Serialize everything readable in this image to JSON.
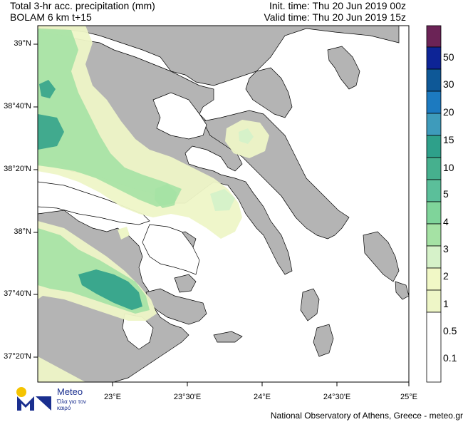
{
  "header": {
    "title": "Total 3-hr acc. precipitation (mm)",
    "subtitle": "BOLAM 6 km t+15",
    "init_time": "Init. time: Thu 20 Jun 2019 00z",
    "valid_time": "Valid time: Thu 20 Jun 2019 15z"
  },
  "axes": {
    "lat_labels": [
      "39°N",
      "38°40'N",
      "38°20'N",
      "38°N",
      "37°40'N",
      "37°20'N"
    ],
    "lon_labels": [
      "23°E",
      "23°30'E",
      "24°E",
      "24°30'E",
      "25°E"
    ]
  },
  "legend": {
    "labels": [
      "50",
      "30",
      "20",
      "15",
      "10",
      "5",
      "4",
      "3",
      "2",
      "1",
      "0.5",
      "0.1"
    ],
    "colors": [
      "#6b2356",
      "#0d2496",
      "#0e5897",
      "#1c7ac0",
      "#3e9bbb",
      "#2ea08a",
      "#5bbf9a",
      "#7fd49a",
      "#a5e2a4",
      "#d6f2c9",
      "#f1f8c6",
      "#eef6c7",
      "#ffffff"
    ]
  },
  "map_colors": {
    "land": "#b4b4b4",
    "sea": "#ffffff",
    "precip_light": "#eef6c7",
    "precip_med": "#a5e2a4",
    "precip_heavy": "#2ea08a"
  },
  "logo": {
    "name": "Meteo",
    "tagline": "Όλα για τον καιρό"
  },
  "footer": "National Observatory of Athens, Greece - meteo.gr"
}
